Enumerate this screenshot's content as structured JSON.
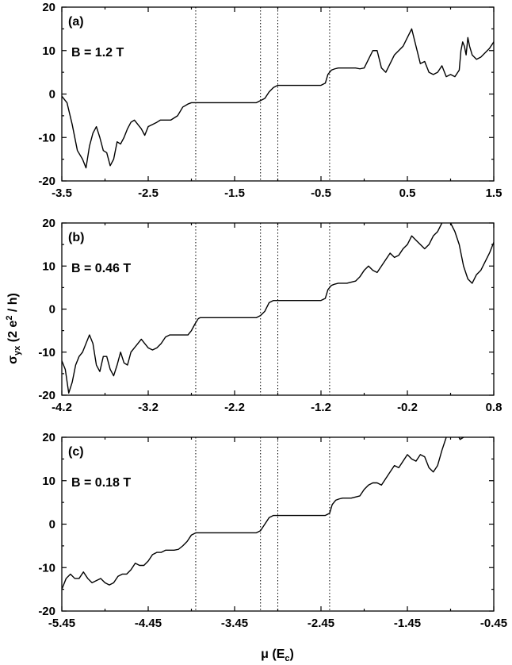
{
  "figure": {
    "ylabel": "σ",
    "ylabel_sub": "yx",
    "ylabel_rest": " (2 e",
    "ylabel_sup": "2",
    "ylabel_end": " / h)",
    "xlabel": "μ (E",
    "xlabel_sub": "c",
    "xlabel_end": ")"
  },
  "chart_data": [
    {
      "type": "line",
      "panel": "(a)",
      "annotation": "B = 1.2 T",
      "xlim": [
        -3.5,
        1.5
      ],
      "ylim": [
        -20,
        20
      ],
      "xticks": [
        -3.5,
        -2.5,
        -1.5,
        -0.5,
        0.5,
        1.5
      ],
      "xticklabels": [
        "-3.5",
        "-2.5",
        "-1.5",
        "-0.5",
        "0.5",
        "1.5"
      ],
      "yticks": [
        -20,
        -10,
        0,
        10,
        20
      ],
      "yticklabels": [
        "-20",
        "-10",
        "0",
        "10",
        "20"
      ],
      "vlines": [
        -1.95,
        -1.2,
        -1.0,
        -0.4
      ],
      "series": [
        {
          "x": [
            -3.5,
            -3.44,
            -3.38,
            -3.32,
            -3.26,
            -3.22,
            -3.18,
            -3.14,
            -3.1,
            -3.06,
            -3.02,
            -2.98,
            -2.94,
            -2.9,
            -2.86,
            -2.82,
            -2.78,
            -2.74,
            -2.7,
            -2.66,
            -2.62,
            -2.58,
            -2.54,
            -2.5,
            -2.45,
            -2.4,
            -2.36,
            -2.32,
            -2.28,
            -2.24,
            -2.2,
            -2.16,
            -2.1,
            -2.04,
            -2.0,
            -1.97,
            -1.94,
            -1.9,
            -1.5,
            -1.25,
            -1.2,
            -1.15,
            -1.1,
            -1.05,
            -1.0,
            -0.5,
            -0.45,
            -0.42,
            -0.38,
            -0.34,
            -0.3,
            -0.2,
            -0.1,
            -0.05,
            0.0,
            0.05,
            0.1,
            0.15,
            0.2,
            0.25,
            0.3,
            0.35,
            0.4,
            0.45,
            0.5,
            0.55,
            0.6,
            0.65,
            0.7,
            0.75,
            0.8,
            0.85,
            0.9,
            0.95,
            1.0,
            1.05,
            1.1,
            1.12,
            1.14,
            1.16,
            1.18,
            1.2,
            1.22,
            1.25,
            1.3,
            1.35,
            1.4,
            1.45,
            1.5
          ],
          "y": [
            -0.5,
            -2,
            -7,
            -13,
            -15,
            -17,
            -12,
            -9,
            -7.5,
            -10,
            -13,
            -13.5,
            -16.5,
            -15,
            -11,
            -11.5,
            -10,
            -8,
            -6.5,
            -6,
            -7,
            -8,
            -9.5,
            -7.5,
            -7,
            -6.5,
            -6,
            -6,
            -6,
            -6,
            -5.5,
            -5,
            -3,
            -2.3,
            -2,
            -2,
            -2,
            -2,
            -2,
            -2,
            -1.5,
            -1,
            0.5,
            1.5,
            2,
            2,
            2.5,
            4.5,
            5.5,
            5.8,
            6,
            6,
            6,
            5.8,
            6,
            8,
            10,
            10,
            6,
            5,
            7,
            9,
            10,
            11,
            13,
            15,
            11,
            7,
            7.5,
            5,
            4.5,
            5,
            6.5,
            4,
            4.5,
            4,
            5.5,
            10,
            12,
            11,
            9,
            13,
            11,
            9,
            8,
            8.5,
            9.5,
            10.5,
            12
          ]
        }
      ]
    },
    {
      "type": "line",
      "panel": "(b)",
      "annotation": "B = 0.46 T",
      "xlim": [
        -4.2,
        0.8
      ],
      "ylim": [
        -20,
        20
      ],
      "xticks": [
        -4.2,
        -3.2,
        -2.2,
        -1.2,
        -0.2,
        0.8
      ],
      "xticklabels": [
        "-4.2",
        "-3.2",
        "-2.2",
        "-1.2",
        "-0.2",
        "0.8"
      ],
      "yticks": [
        -20,
        -10,
        0,
        10,
        20
      ],
      "yticklabels": [
        "-20",
        "-10",
        "0",
        "10",
        "20"
      ],
      "vlines": [
        -2.65,
        -1.9,
        -1.7,
        -1.1
      ],
      "series": [
        {
          "x": [
            -4.2,
            -4.16,
            -4.12,
            -4.08,
            -4.04,
            -4.0,
            -3.96,
            -3.92,
            -3.88,
            -3.84,
            -3.8,
            -3.76,
            -3.72,
            -3.68,
            -3.64,
            -3.6,
            -3.56,
            -3.52,
            -3.48,
            -3.44,
            -3.4,
            -3.36,
            -3.32,
            -3.28,
            -3.24,
            -3.2,
            -3.15,
            -3.1,
            -3.05,
            -3.0,
            -2.95,
            -2.9,
            -2.86,
            -2.82,
            -2.78,
            -2.74,
            -2.7,
            -2.66,
            -2.62,
            -2.6,
            -2.2,
            -1.95,
            -1.9,
            -1.85,
            -1.8,
            -1.75,
            -1.7,
            -1.2,
            -1.15,
            -1.12,
            -1.08,
            -1.04,
            -1.0,
            -0.9,
            -0.8,
            -0.75,
            -0.7,
            -0.65,
            -0.6,
            -0.55,
            -0.5,
            -0.45,
            -0.4,
            -0.35,
            -0.3,
            -0.25,
            -0.2,
            -0.15,
            -0.1,
            -0.05,
            0.0,
            0.05,
            0.1,
            0.15,
            0.2,
            0.25,
            0.3,
            0.35,
            0.4,
            0.45,
            0.5,
            0.55,
            0.6,
            0.65,
            0.7,
            0.75,
            0.8
          ],
          "y": [
            -12,
            -14,
            -19.5,
            -17,
            -13,
            -11,
            -10,
            -8,
            -6,
            -8,
            -13,
            -14.5,
            -11,
            -11,
            -14,
            -15.5,
            -13,
            -10,
            -12.5,
            -13,
            -10,
            -9,
            -8,
            -7,
            -8,
            -9,
            -9.5,
            -9,
            -8,
            -6.5,
            -6,
            -6,
            -6,
            -6,
            -6,
            -6,
            -5,
            -3.5,
            -2.2,
            -2,
            -2,
            -2,
            -1.5,
            -0.5,
            1.5,
            2,
            2,
            2,
            2.5,
            4.5,
            5.5,
            5.8,
            6,
            6,
            6.5,
            7.5,
            9,
            10,
            9,
            8.5,
            10,
            11.5,
            13,
            12,
            12.5,
            14,
            15,
            17,
            16,
            15,
            14,
            15,
            17,
            18,
            20,
            21,
            20,
            18,
            15,
            10,
            7,
            6,
            8,
            9,
            11,
            13,
            15.5
          ]
        }
      ]
    },
    {
      "type": "line",
      "panel": "(c)",
      "annotation": "B = 0.18 T",
      "xlim": [
        -5.45,
        -0.45
      ],
      "ylim": [
        -20,
        20
      ],
      "xticks": [
        -5.45,
        -4.45,
        -3.45,
        -2.45,
        -1.45,
        -0.45
      ],
      "xticklabels": [
        "-5.45",
        "-4.45",
        "-3.45",
        "-2.45",
        "-1.45",
        "-0.45"
      ],
      "yticks": [
        -20,
        -10,
        0,
        10,
        20
      ],
      "yticklabels": [
        "-20",
        "-10",
        "0",
        "10",
        "20"
      ],
      "vlines": [
        -3.9,
        -3.15,
        -2.95,
        -2.35
      ],
      "series": [
        {
          "x": [
            -5.45,
            -5.4,
            -5.35,
            -5.3,
            -5.25,
            -5.2,
            -5.15,
            -5.1,
            -5.05,
            -5.0,
            -4.95,
            -4.9,
            -4.85,
            -4.8,
            -4.75,
            -4.7,
            -4.65,
            -4.6,
            -4.55,
            -4.5,
            -4.45,
            -4.4,
            -4.35,
            -4.3,
            -4.25,
            -4.2,
            -4.15,
            -4.1,
            -4.05,
            -4.0,
            -3.95,
            -3.9,
            -3.87,
            -3.85,
            -3.5,
            -3.2,
            -3.15,
            -3.1,
            -3.05,
            -3.0,
            -2.95,
            -2.4,
            -2.35,
            -2.32,
            -2.28,
            -2.24,
            -2.2,
            -2.1,
            -2.0,
            -1.95,
            -1.9,
            -1.85,
            -1.8,
            -1.75,
            -1.7,
            -1.65,
            -1.6,
            -1.55,
            -1.5,
            -1.45,
            -1.4,
            -1.35,
            -1.3,
            -1.25,
            -1.2,
            -1.15,
            -1.1,
            -1.05,
            -1.0,
            -0.97,
            -0.94,
            -0.92,
            -0.88,
            -0.84,
            -0.8,
            -0.75
          ],
          "y": [
            -15,
            -12.5,
            -11.5,
            -12.5,
            -12.5,
            -11,
            -12.5,
            -13.5,
            -13,
            -12.5,
            -13.5,
            -14,
            -13.5,
            -12,
            -11.5,
            -11.5,
            -10.5,
            -9,
            -9.5,
            -9.5,
            -8.5,
            -7,
            -6.5,
            -6.5,
            -6,
            -6,
            -6,
            -5.8,
            -5,
            -4,
            -2.5,
            -2,
            -2,
            -2,
            -2,
            -2,
            -1.5,
            0,
            1.5,
            2,
            2,
            2,
            2.5,
            4.5,
            5.5,
            5.8,
            6,
            6,
            6.5,
            8,
            9,
            9.5,
            9.5,
            9,
            10.5,
            12,
            13.5,
            13,
            14.5,
            16,
            15,
            14.5,
            16,
            15.5,
            13,
            12,
            13.5,
            17,
            20,
            22,
            23,
            23,
            21,
            19.5,
            20,
            21
          ]
        }
      ]
    }
  ]
}
